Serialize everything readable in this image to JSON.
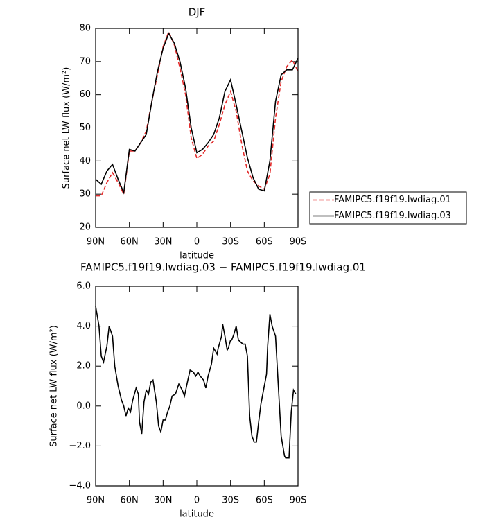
{
  "chart_data": [
    {
      "type": "line",
      "title": "DJF",
      "xlabel": "latitude",
      "ylabel": "Surface net LW flux (W/m²)",
      "x": [
        90,
        85,
        80,
        75,
        70,
        65,
        60,
        55,
        50,
        45,
        40,
        35,
        30,
        25,
        20,
        15,
        10,
        5,
        0,
        -5,
        -10,
        -15,
        -20,
        -25,
        -30,
        -35,
        -40,
        -45,
        -50,
        -55,
        -60,
        -65,
        -70,
        -75,
        -80,
        -85,
        -90
      ],
      "series": [
        {
          "name": "FAMIPC5.f19f19.lwdiag.01",
          "color": "#e32b2b",
          "linestyle": "dashed",
          "values": [
            29.5,
            29.5,
            33.5,
            36.5,
            33.5,
            30,
            43,
            43,
            45.5,
            49,
            58,
            66,
            74.5,
            79,
            75,
            68,
            60,
            47,
            40.8,
            42,
            44.5,
            46,
            51,
            57,
            61,
            55,
            45,
            37,
            34,
            32.5,
            31.5,
            36,
            53,
            64,
            68.5,
            70.5,
            67
          ]
        },
        {
          "name": "FAMIPC5.f19f19.lwdiag.03",
          "color": "#000000",
          "linestyle": "solid",
          "values": [
            34.5,
            33,
            37,
            39,
            34.5,
            30.5,
            43.5,
            43,
            45.5,
            48,
            58,
            67,
            74,
            78.5,
            75.5,
            70,
            62,
            50,
            42.5,
            43.5,
            45.5,
            48,
            53,
            61,
            64.5,
            57,
            49,
            41,
            35,
            31.5,
            31,
            40,
            58,
            66,
            67.5,
            67.5,
            71
          ]
        }
      ],
      "xlim": [
        90,
        -90
      ],
      "xticks": [
        {
          "value": 90,
          "label": "90N"
        },
        {
          "value": 60,
          "label": "60N"
        },
        {
          "value": 30,
          "label": "30N"
        },
        0,
        {
          "value": -30,
          "label": "30S"
        },
        {
          "value": -60,
          "label": "60S"
        },
        {
          "value": -90,
          "label": "90S"
        }
      ],
      "ylim": [
        20,
        80
      ],
      "yticks": [
        20,
        30,
        40,
        50,
        60,
        70,
        80
      ],
      "legend": "right"
    },
    {
      "type": "line",
      "title": "FAMIPC5.f19f19.lwdiag.03 − FAMIPC5.f19f19.lwdiag.01",
      "xlabel": "latitude",
      "ylabel": "Surface net LW flux (W/m²)",
      "x": [
        90,
        87,
        85,
        83,
        80,
        78,
        75,
        73,
        70,
        67,
        65,
        63,
        61,
        59,
        57,
        54,
        52,
        51,
        49,
        47,
        45,
        43,
        41,
        39,
        36,
        34,
        32,
        30,
        28,
        26,
        24,
        22,
        19,
        16,
        13,
        11,
        8,
        6,
        3,
        1,
        -1,
        -3,
        -6,
        -8,
        -10,
        -13,
        -15,
        -18,
        -19,
        -22,
        -23,
        -25,
        -27,
        -28,
        -30,
        -31,
        -33,
        -35,
        -37,
        -39,
        -41,
        -43,
        -45,
        -47,
        -49,
        -51,
        -53,
        -55,
        -57,
        -59,
        -62,
        -63,
        -65,
        -67,
        -70,
        -71,
        -73,
        -75,
        -78,
        -79,
        -82,
        -84,
        -86,
        -88
      ],
      "series": [
        {
          "color": "#000000",
          "linestyle": "solid",
          "values": [
            5.0,
            4.0,
            2.5,
            2.2,
            3.0,
            4.0,
            3.5,
            2.0,
            1.0,
            0.3,
            0.0,
            -0.5,
            -0.1,
            -0.3,
            0.3,
            0.9,
            0.6,
            -0.8,
            -1.4,
            0.2,
            0.8,
            0.6,
            1.2,
            1.3,
            0.2,
            -1.0,
            -1.3,
            -0.7,
            -0.7,
            -0.3,
            0.0,
            0.5,
            0.6,
            1.1,
            0.8,
            0.5,
            1.3,
            1.8,
            1.7,
            1.5,
            1.7,
            1.5,
            1.3,
            0.9,
            1.5,
            2.1,
            2.9,
            2.6,
            2.9,
            3.5,
            4.1,
            3.5,
            2.8,
            2.9,
            3.3,
            3.3,
            3.6,
            4.0,
            3.3,
            3.2,
            3.1,
            3.1,
            2.5,
            -0.5,
            -1.5,
            -1.8,
            -1.8,
            -0.8,
            0.1,
            0.7,
            1.6,
            3.0,
            4.6,
            4.0,
            3.5,
            2.5,
            0.5,
            -1.5,
            -2.5,
            -2.6,
            -2.6,
            -0.3,
            0.8,
            0.6
          ]
        }
      ],
      "xlim": [
        90,
        -90
      ],
      "xticks": [
        {
          "value": 90,
          "label": "90N"
        },
        {
          "value": 60,
          "label": "60N"
        },
        {
          "value": 30,
          "label": "30N"
        },
        0,
        {
          "value": -30,
          "label": "30S"
        },
        {
          "value": -60,
          "label": "60S"
        },
        {
          "value": -90,
          "label": "90S"
        }
      ],
      "ylim": [
        -4,
        6
      ],
      "yticks": [
        {
          "value": -4,
          "label": "−4.0"
        },
        {
          "value": -2,
          "label": "−2.0"
        },
        {
          "value": 0,
          "label": "0.0"
        },
        {
          "value": 2,
          "label": "2.0"
        },
        {
          "value": 4,
          "label": "4.0"
        },
        {
          "value": 6,
          "label": "6.0"
        }
      ]
    }
  ]
}
